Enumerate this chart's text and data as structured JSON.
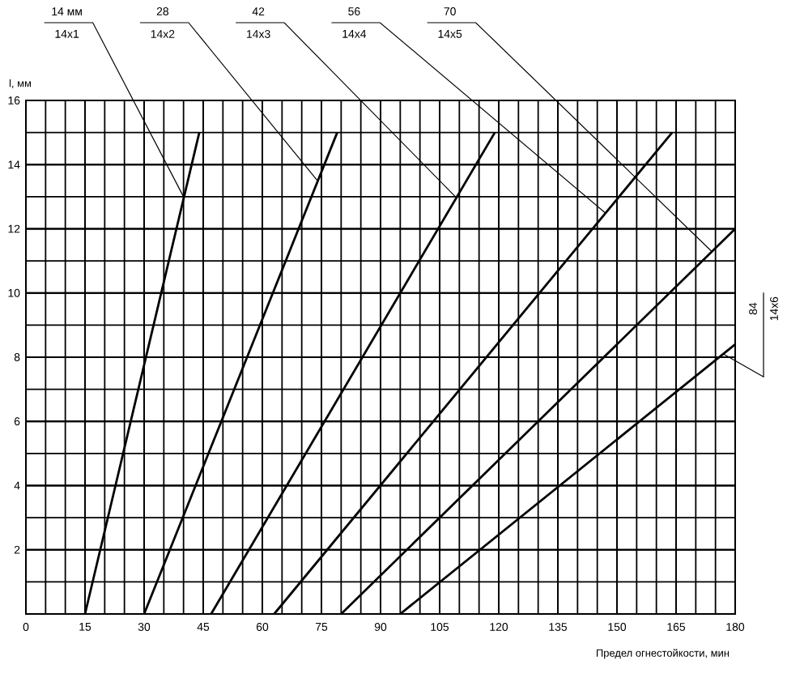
{
  "chart_data": {
    "type": "line",
    "xlabel": "Предел огнестойкости, мин",
    "ylabel": "l, мм",
    "xlim": [
      0,
      180
    ],
    "ylim": [
      0,
      16
    ],
    "xticks": [
      0,
      15,
      30,
      45,
      60,
      75,
      90,
      105,
      120,
      135,
      150,
      165,
      180
    ],
    "yticks": [
      2,
      4,
      6,
      8,
      10,
      12,
      14,
      16
    ],
    "grid": true,
    "color": "#000000",
    "series": [
      {
        "name": "14 мм",
        "x": [
          15,
          44
        ],
        "values": [
          0,
          15
        ]
      },
      {
        "name": "28",
        "x": [
          30,
          79
        ],
        "values": [
          0,
          15
        ]
      },
      {
        "name": "42",
        "x": [
          47,
          119
        ],
        "values": [
          0,
          15
        ]
      },
      {
        "name": "56",
        "x": [
          63,
          164
        ],
        "values": [
          0,
          15
        ]
      },
      {
        "name": "70",
        "x": [
          80,
          180
        ],
        "values": [
          0,
          12
        ]
      },
      {
        "name": "84",
        "x": [
          95,
          180
        ],
        "values": [
          0,
          8.4
        ]
      }
    ],
    "annotations": [
      {
        "text": "14x1",
        "x": 40,
        "y": 13
      },
      {
        "text": "14x2",
        "x": 74,
        "y": 13.5
      },
      {
        "text": "14x3",
        "x": 109,
        "y": 13
      },
      {
        "text": "14x4",
        "x": 147,
        "y": 12.5
      },
      {
        "text": "14x5",
        "x": 174,
        "y": 11.3
      },
      {
        "text": "14x6",
        "x": 177,
        "y": 8.1
      }
    ]
  }
}
